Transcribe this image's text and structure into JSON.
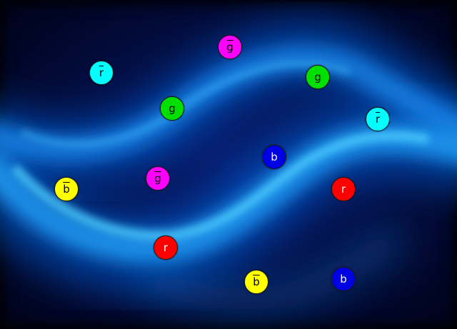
{
  "colors": {
    "r": "#ff0000",
    "g": "#00e000",
    "b": "#0000e6",
    "anti_r": "#00ffff",
    "anti_g": "#ff00ff",
    "anti_b": "#ffff00",
    "background": "#03104a",
    "glow": "#27b8ff"
  },
  "particles": [
    {
      "id": "anti-r-1",
      "label": "r",
      "anti": true,
      "color_key": "anti_r",
      "text_color": "#000000"
    },
    {
      "id": "anti-g-1",
      "label": "g",
      "anti": true,
      "color_key": "anti_g",
      "text_color": "#000000"
    },
    {
      "id": "g-1",
      "label": "g",
      "anti": false,
      "color_key": "g",
      "text_color": "#000000"
    },
    {
      "id": "g-2",
      "label": "g",
      "anti": false,
      "color_key": "g",
      "text_color": "#000000"
    },
    {
      "id": "anti-r-2",
      "label": "r",
      "anti": true,
      "color_key": "anti_r",
      "text_color": "#000000"
    },
    {
      "id": "b-1",
      "label": "b",
      "anti": false,
      "color_key": "b",
      "text_color": "#ffffff"
    },
    {
      "id": "anti-g-2",
      "label": "g",
      "anti": true,
      "color_key": "anti_g",
      "text_color": "#000000"
    },
    {
      "id": "anti-b-1",
      "label": "b",
      "anti": true,
      "color_key": "anti_b",
      "text_color": "#000000"
    },
    {
      "id": "r-1",
      "label": "r",
      "anti": false,
      "color_key": "r",
      "text_color": "#ffffff"
    },
    {
      "id": "r-2",
      "label": "r",
      "anti": false,
      "color_key": "r",
      "text_color": "#ffffff"
    },
    {
      "id": "anti-b-2",
      "label": "b",
      "anti": true,
      "color_key": "anti_b",
      "text_color": "#000000"
    },
    {
      "id": "b-2",
      "label": "b",
      "anti": false,
      "color_key": "b",
      "text_color": "#ffffff"
    }
  ]
}
